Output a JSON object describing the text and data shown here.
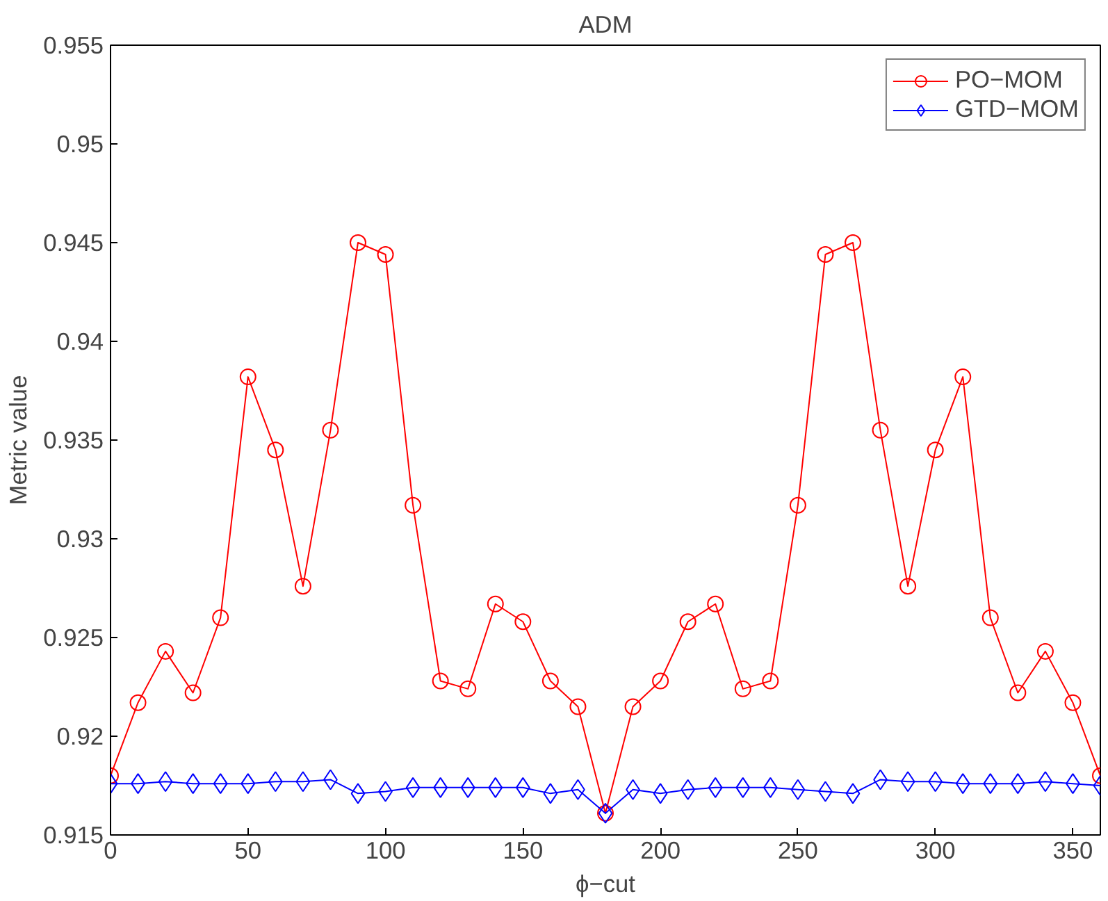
{
  "chart_data": {
    "type": "line",
    "title": "ADM",
    "xlabel": "ϕ−cut",
    "ylabel": "Metric value",
    "x": [
      0,
      10,
      20,
      30,
      40,
      50,
      60,
      70,
      80,
      90,
      100,
      110,
      120,
      130,
      140,
      150,
      160,
      170,
      180,
      190,
      200,
      210,
      220,
      230,
      240,
      250,
      260,
      270,
      280,
      290,
      300,
      310,
      320,
      330,
      340,
      350,
      360
    ],
    "series": [
      {
        "name": "PO−MOM",
        "color": "#ff0000",
        "marker": "circle",
        "values": [
          0.918,
          0.9217,
          0.9243,
          0.9222,
          0.926,
          0.9382,
          0.9345,
          0.9276,
          0.9355,
          0.945,
          0.9444,
          0.9317,
          0.9228,
          0.9224,
          0.9267,
          0.9258,
          0.9228,
          0.9215,
          0.9161,
          0.9215,
          0.9228,
          0.9258,
          0.9267,
          0.9224,
          0.9228,
          0.9317,
          0.9444,
          0.945,
          0.9355,
          0.9276,
          0.9345,
          0.9382,
          0.926,
          0.9222,
          0.9243,
          0.9217,
          0.918
        ]
      },
      {
        "name": "GTD−MOM",
        "color": "#0000ff",
        "marker": "diamond",
        "values": [
          0.9176,
          0.9176,
          0.9177,
          0.9176,
          0.9176,
          0.9176,
          0.9177,
          0.9177,
          0.9178,
          0.9171,
          0.9172,
          0.9174,
          0.9174,
          0.9174,
          0.9174,
          0.9174,
          0.9171,
          0.9173,
          0.9161,
          0.9173,
          0.9171,
          0.9173,
          0.9174,
          0.9174,
          0.9174,
          0.9173,
          0.9172,
          0.9171,
          0.9178,
          0.9177,
          0.9177,
          0.9176,
          0.9176,
          0.9176,
          0.9177,
          0.9176,
          0.9175
        ]
      }
    ],
    "xlim": [
      0,
      360
    ],
    "xticks": [
      0,
      50,
      100,
      150,
      200,
      250,
      300,
      350
    ],
    "ylim": [
      0.915,
      0.955
    ],
    "yticks": [
      0.915,
      0.92,
      0.925,
      0.93,
      0.935,
      0.94,
      0.945,
      0.95,
      0.955
    ],
    "grid": false,
    "legend": "top right",
    "line_style": "solid"
  }
}
